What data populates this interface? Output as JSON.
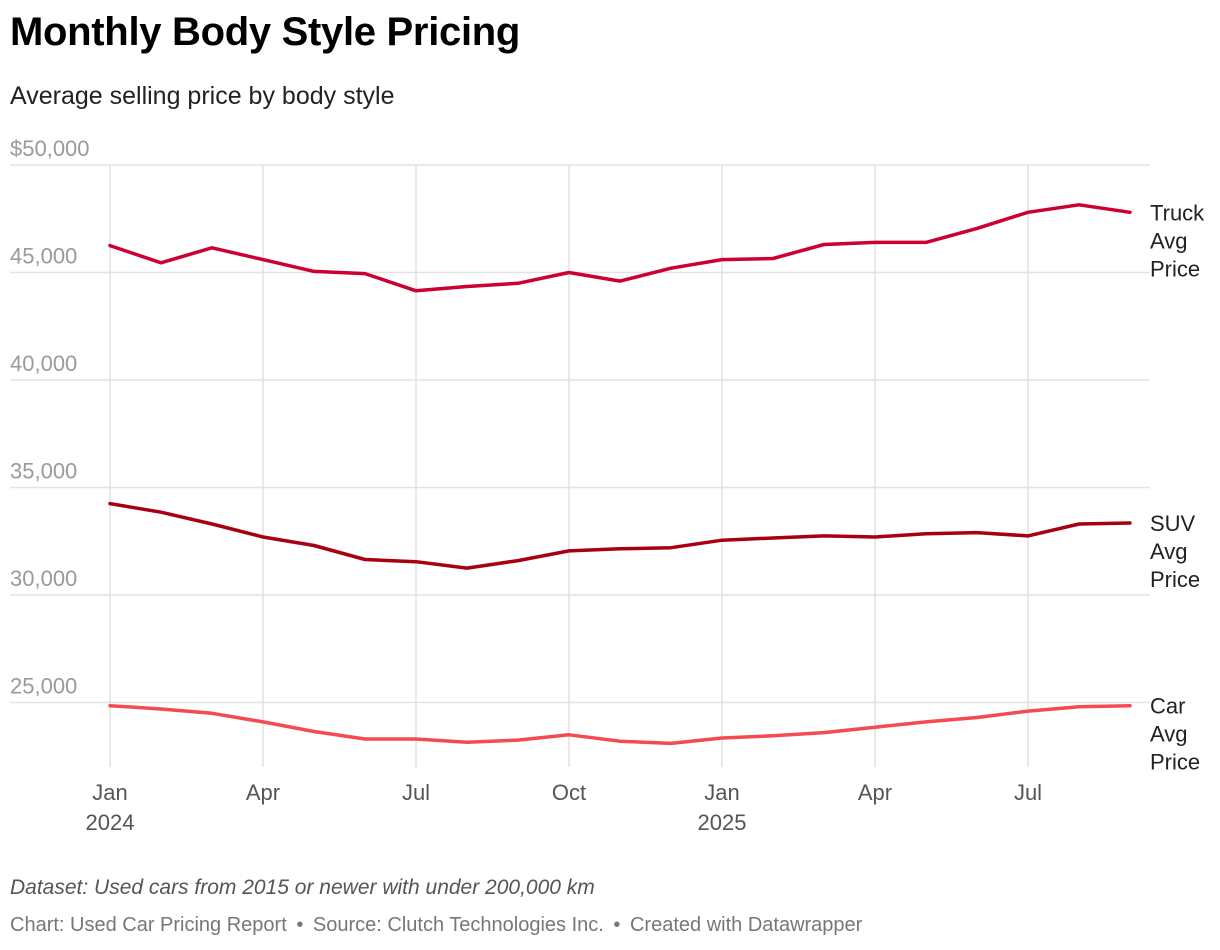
{
  "title": "Monthly Body Style Pricing",
  "subtitle": "Average selling price by body style",
  "notes": "Dataset: Used cars from 2015 or newer with under 200,000 km",
  "byline": {
    "chart": "Chart: Used Car Pricing Report",
    "source": "Source: Clutch Technologies Inc.",
    "created": "Created with Datawrapper",
    "separator": "•"
  },
  "chart_data": {
    "type": "line",
    "title": "Monthly Body Style Pricing",
    "xlabel": "",
    "ylabel": "",
    "ylim": [
      22000,
      50000
    ],
    "yticks": [
      {
        "value": 50000,
        "label": "$50,000"
      },
      {
        "value": 45000,
        "label": "45,000"
      },
      {
        "value": 40000,
        "label": "40,000"
      },
      {
        "value": 35000,
        "label": "35,000"
      },
      {
        "value": 30000,
        "label": "30,000"
      },
      {
        "value": 25000,
        "label": "25,000"
      }
    ],
    "x": [
      "2024-01",
      "2024-02",
      "2024-03",
      "2024-04",
      "2024-05",
      "2024-06",
      "2024-07",
      "2024-08",
      "2024-09",
      "2024-10",
      "2024-11",
      "2024-12",
      "2025-01",
      "2025-02",
      "2025-03",
      "2025-04",
      "2025-05",
      "2025-06",
      "2025-07",
      "2025-08",
      "2025-09"
    ],
    "xticks": [
      {
        "index": 0,
        "label": "Jan",
        "year": "2024"
      },
      {
        "index": 3,
        "label": "Apr",
        "year": ""
      },
      {
        "index": 6,
        "label": "Jul",
        "year": ""
      },
      {
        "index": 9,
        "label": "Oct",
        "year": ""
      },
      {
        "index": 12,
        "label": "Jan",
        "year": "2025"
      },
      {
        "index": 15,
        "label": "Apr",
        "year": ""
      },
      {
        "index": 18,
        "label": "Jul",
        "year": ""
      }
    ],
    "grid": true,
    "series": [
      {
        "name": "Truck Avg Price",
        "label_lines": [
          "Truck",
          "Avg",
          "Price"
        ],
        "color": "#cc0033",
        "values": [
          46250,
          45450,
          46150,
          45600,
          45050,
          44950,
          44150,
          44350,
          44500,
          45000,
          44600,
          45200,
          45600,
          45650,
          46300,
          46400,
          46400,
          47050,
          47800,
          48150,
          47800
        ]
      },
      {
        "name": "SUV Avg Price",
        "label_lines": [
          "SUV",
          "Avg",
          "Price"
        ],
        "color": "#a8000f",
        "values": [
          34250,
          33850,
          33300,
          32700,
          32300,
          31650,
          31550,
          31250,
          31600,
          32050,
          32150,
          32200,
          32550,
          32650,
          32750,
          32700,
          32850,
          32900,
          32750,
          33300,
          33350
        ]
      },
      {
        "name": "Car Avg Price",
        "label_lines": [
          "Car",
          "Avg",
          "Price"
        ],
        "color": "#f54a52",
        "values": [
          24850,
          24700,
          24500,
          24100,
          23650,
          23300,
          23300,
          23150,
          23250,
          23500,
          23200,
          23100,
          23350,
          23450,
          23600,
          23850,
          24100,
          24300,
          24600,
          24800,
          24850
        ]
      }
    ]
  }
}
